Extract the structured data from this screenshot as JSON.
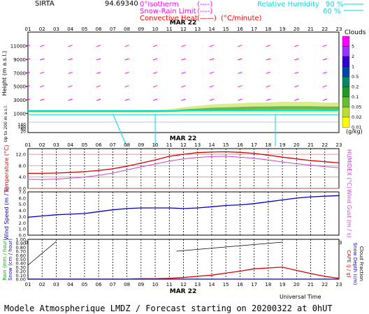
{
  "header": {
    "site": "SIRTA",
    "coords": "94.69340",
    "legend_left": [
      {
        "label": "0°isotherm",
        "sym": "(----)",
        "color": "#ff00ff"
      },
      {
        "label": "Snow-Rain Limit",
        "sym": "(----)",
        "color": "#ff00ff"
      },
      {
        "label": "Convective Heat",
        "sym": "(——)",
        "unit": "(°C/minute)",
        "color": "#ff0000"
      }
    ],
    "legend_right": [
      {
        "label": "Relative Humidity",
        "value": "90 %",
        "color": "#00dddd"
      },
      {
        "label": "",
        "value": "60 %",
        "color": "#00dddd"
      }
    ]
  },
  "footer": {
    "universal_time": "Universal Time",
    "model_caption": "Modele Atmospherique LMDZ / Forecast starting on 20200322 at 0hUT"
  },
  "date_label": "MAR 22",
  "hours": [
    "01",
    "02",
    "03",
    "04",
    "05",
    "06",
    "07",
    "08",
    "09",
    "10",
    "11",
    "12",
    "13",
    "14",
    "15",
    "16",
    "17",
    "18",
    "19",
    "20",
    "21",
    "22",
    "23"
  ],
  "clouds_legend": {
    "title": "Clouds",
    "unit": "(g/kg)",
    "levels": [
      "5",
      "2",
      "1",
      "0.5",
      "0.2",
      "0.1",
      "0.05",
      "0.02",
      "0.01"
    ],
    "colors": [
      "#ff00ff",
      "#9933ff",
      "#3300cc",
      "#0044aa",
      "#008866",
      "#229922",
      "#66bb33",
      "#bbdd33",
      "#ffff00"
    ]
  },
  "chart_data": [
    {
      "type": "heatmap",
      "ylabel": "Height (m a.s.l.)",
      "ylabel2": "Up to 200 m a.s.l.",
      "yticks_upper": [
        "11000",
        "9000",
        "7000",
        "5000",
        "3000",
        "1000"
      ],
      "yticks_lower": [
        "140",
        "100",
        "60",
        "20"
      ],
      "x": [
        "01",
        "02",
        "03",
        "04",
        "05",
        "06",
        "07",
        "08",
        "09",
        "10",
        "11",
        "12",
        "13",
        "14",
        "15",
        "16",
        "17",
        "18",
        "19",
        "20",
        "21",
        "22",
        "23"
      ],
      "cloud_layer": {
        "base_m": 1100,
        "top_m": [
          1500,
          1500,
          1500,
          1500,
          1500,
          1500,
          1500,
          1500,
          1500,
          1500,
          1600,
          1900,
          2100,
          2300,
          2400,
          2500,
          2600,
          2600,
          2700,
          2700,
          2700,
          2600,
          2600
        ]
      }
    },
    {
      "type": "line",
      "ylabel": "Temperature (°C)",
      "ylabel_right": "HUMIDEX (°C)",
      "yticks": [
        "12.0",
        "8.0",
        "4.0",
        "0.0"
      ],
      "ylim": [
        0,
        14
      ],
      "x": [
        "01",
        "02",
        "03",
        "04",
        "05",
        "06",
        "07",
        "08",
        "09",
        "10",
        "11",
        "12",
        "13",
        "14",
        "15",
        "16",
        "17",
        "18",
        "19",
        "20",
        "21",
        "22",
        "23"
      ],
      "series": [
        {
          "name": "Temperature",
          "color": "#dd0000",
          "values": [
            5.3,
            5.3,
            5.4,
            5.6,
            5.9,
            6.3,
            6.9,
            7.8,
            8.9,
            10.0,
            11.3,
            12.0,
            12.6,
            12.8,
            12.9,
            12.7,
            12.3,
            11.7,
            11.0,
            10.4,
            9.8,
            9.4,
            9.0
          ]
        },
        {
          "name": "HUMIDEX",
          "color": "#cc44cc",
          "values": [
            3.2,
            3.1,
            3.3,
            3.6,
            4.0,
            4.6,
            5.4,
            6.5,
            7.6,
            8.6,
            9.6,
            10.4,
            10.9,
            11.2,
            11.3,
            11.0,
            10.6,
            10.0,
            9.3,
            8.7,
            8.2,
            7.7,
            7.3
          ]
        }
      ]
    },
    {
      "type": "line",
      "ylabel": "Wind Speed (m / s)",
      "ylabel_right": "Wind Gust (m / s)",
      "yticks": [
        "7.0",
        "6.0",
        "5.0",
        "4.0",
        "3.0",
        "2.0",
        "1.0",
        "0.0"
      ],
      "ylim": [
        0,
        7
      ],
      "x": [
        "01",
        "02",
        "03",
        "04",
        "05",
        "06",
        "07",
        "08",
        "09",
        "10",
        "11",
        "12",
        "13",
        "14",
        "15",
        "16",
        "17",
        "18",
        "19",
        "20",
        "21",
        "22",
        "23"
      ],
      "series": [
        {
          "name": "Wind Speed",
          "color": "#0000cc",
          "values": [
            2.9,
            3.1,
            3.3,
            3.4,
            3.5,
            3.8,
            4.1,
            4.3,
            4.4,
            4.4,
            4.4,
            4.3,
            4.4,
            4.6,
            4.8,
            4.9,
            5.1,
            5.4,
            5.7,
            6.0,
            6.2,
            6.3,
            6.4
          ]
        }
      ]
    },
    {
      "type": "line",
      "ylabel": "Rain (mm / hour)",
      "ylabel2": "Snow (cm / hour)",
      "ylabel_right": "CAPE (J / g)",
      "ylabel_right2": "Snow Depth (cm)",
      "ylabel_right3": "Cloud Fraction",
      "yticks": [
        "1.00",
        "0.90",
        "0.80",
        "0.70",
        "0.60",
        "0.50",
        "0.40",
        "0.30",
        "0.20",
        "0.10",
        "0.00"
      ],
      "ylim": [
        0,
        1
      ],
      "x": [
        "01",
        "02",
        "03",
        "04",
        "05",
        "06",
        "07",
        "08",
        "09",
        "10",
        "11",
        "12",
        "13",
        "14",
        "15",
        "16",
        "17",
        "18",
        "19",
        "20",
        "21",
        "22",
        "23"
      ],
      "series": [
        {
          "name": "CAPE",
          "color": "#dd0000",
          "values": [
            0,
            0,
            0,
            0,
            0,
            0,
            0,
            0,
            0.01,
            0.01,
            0.02,
            0.04,
            0.07,
            0.1,
            0.15,
            0.2,
            0.26,
            0.28,
            0.3,
            0.22,
            0.14,
            0.07,
            0.02
          ]
        }
      ]
    }
  ]
}
